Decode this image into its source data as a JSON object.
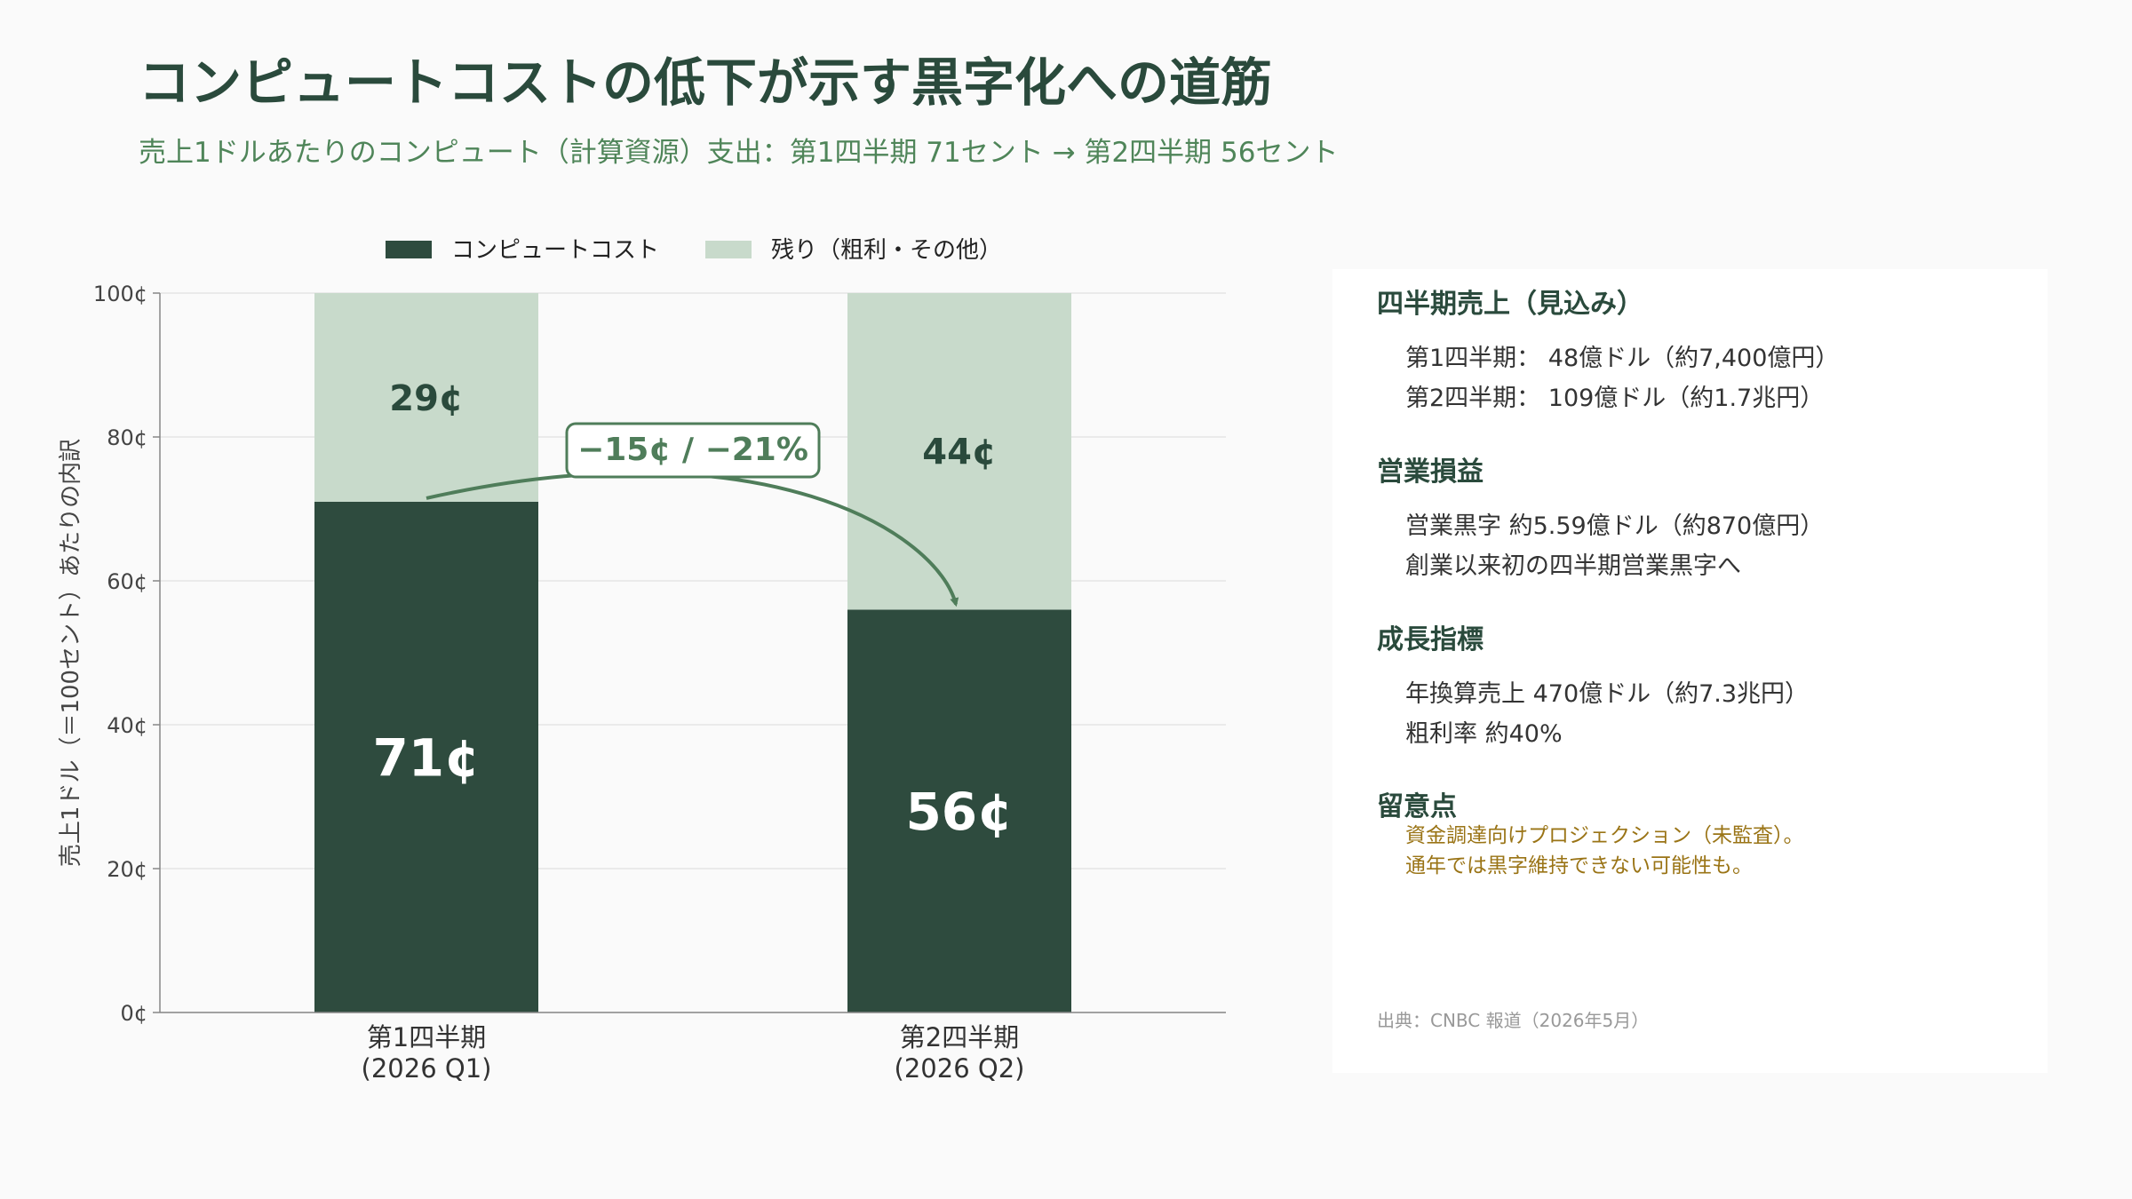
{
  "header": {
    "title": "コンピュートコストの低下が示す黒字化への道筋",
    "subtitle": "売上1ドルあたりのコンピュート（計算資源）支出：第1四半期 71セント → 第2四半期 56セント"
  },
  "chart_data": {
    "type": "bar",
    "stacked": true,
    "categories": [
      {
        "line1": "第1四半期",
        "line2": "(2026 Q1)"
      },
      {
        "line1": "第2四半期",
        "line2": "(2026 Q2)"
      }
    ],
    "series": [
      {
        "name": "コンピュートコスト",
        "values": [
          71,
          56
        ],
        "labels": [
          "71¢",
          "56¢"
        ],
        "color": "#2e4b3e",
        "label_color": "#ffffff"
      },
      {
        "name": "残り（粗利・その他）",
        "values": [
          29,
          44
        ],
        "labels": [
          "29¢",
          "44¢"
        ],
        "color": "#c8dacb",
        "label_color": "#2a4a3c"
      }
    ],
    "ylabel": "売上1ドル（＝100セント）あたりの内訳",
    "ylim": [
      0,
      100
    ],
    "yticks": [
      0,
      20,
      40,
      60,
      80,
      100
    ],
    "ytick_labels": [
      "0¢",
      "20¢",
      "40¢",
      "60¢",
      "80¢",
      "100¢"
    ],
    "grid": true,
    "legend": "top",
    "annotation": {
      "text": "−15¢ / −21%",
      "from_value": 71,
      "to_value": 56,
      "color": "#4f7d5a"
    }
  },
  "panel": {
    "sections": [
      {
        "title": "四半期売上（見込み）",
        "lines": [
          "第1四半期： 48億ドル（約7,400億円）",
          "第2四半期： 109億ドル（約1.7兆円）"
        ]
      },
      {
        "title": "営業損益",
        "lines": [
          "営業黒字 約5.59億ドル（約870億円）",
          "創業以来初の四半期営業黒字へ"
        ]
      },
      {
        "title": "成長指標",
        "lines": [
          "年換算売上 470億ドル（約7.3兆円）",
          "粗利率 約40%"
        ]
      }
    ],
    "notes": {
      "title": "留意点",
      "lines": [
        "資金調達向けプロジェクション（未監査）。",
        "通年では黒字維持できない可能性も。"
      ]
    },
    "source": "出典：CNBC 報道（2026年5月）"
  }
}
